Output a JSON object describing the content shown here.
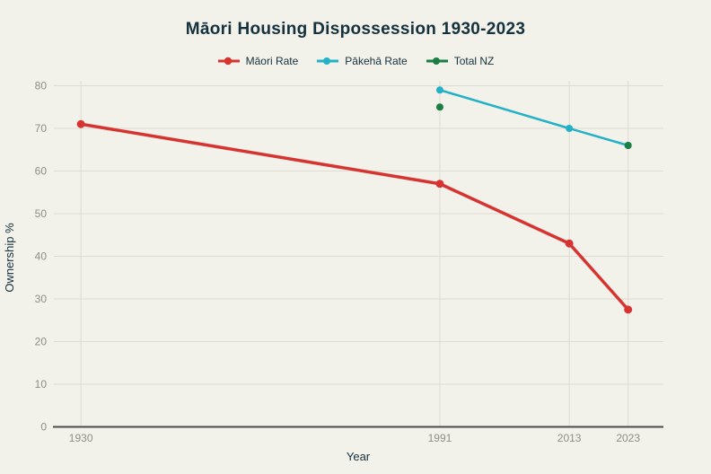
{
  "colors": {
    "background": "#f2f1ea",
    "ink": "#15313d",
    "tick_label": "#8e8d86",
    "gridline": "#dedcd3",
    "axis_line": "#4c4c4c"
  },
  "chart_data": {
    "type": "line",
    "title": "Māori Housing Dispossession 1930-2023",
    "xlabel": "Year",
    "ylabel": "Ownership %",
    "x": [
      1930,
      1991,
      2013,
      2023
    ],
    "x_range": [
      1925.4,
      2029.0
    ],
    "ylim": [
      0,
      81
    ],
    "yticks": [
      0,
      10,
      20,
      30,
      40,
      50,
      60,
      70,
      80
    ],
    "grid": true,
    "legend_position": "top-center",
    "series": [
      {
        "name": "Māori Rate",
        "color": "#d63431",
        "values": [
          71,
          57,
          43,
          27.5
        ]
      },
      {
        "name": "Pākehā Rate",
        "color": "#22b1c7",
        "values": [
          null,
          79,
          70,
          66
        ]
      },
      {
        "name": "Total NZ",
        "color": "#1b7e45",
        "values": [
          null,
          75,
          null,
          66
        ]
      }
    ]
  }
}
